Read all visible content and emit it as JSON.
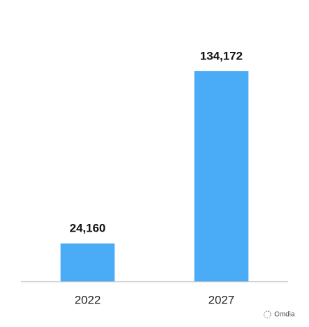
{
  "chart_data": {
    "type": "bar",
    "categories": [
      "2022",
      "2027"
    ],
    "values": [
      24160,
      134172
    ],
    "value_labels": [
      "24,160",
      "134,172"
    ],
    "color": "#4aabf6",
    "watermark": "Omdia"
  }
}
